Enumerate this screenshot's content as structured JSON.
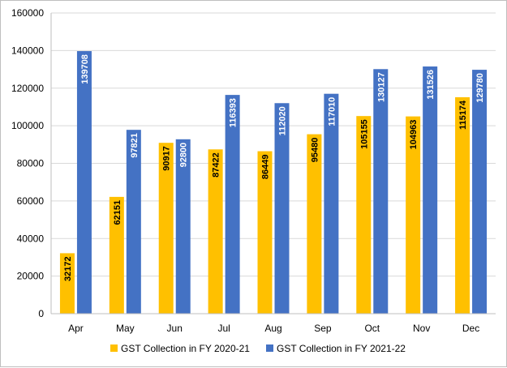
{
  "chart_data": {
    "type": "bar",
    "categories": [
      "Apr",
      "May",
      "Jun",
      "Jul",
      "Aug",
      "Sep",
      "Oct",
      "Nov",
      "Dec"
    ],
    "series": [
      {
        "name": "GST Collection in FY 2020-21",
        "color": "#FFC000",
        "label_color": "#000000",
        "values": [
          32172,
          62151,
          90917,
          87422,
          86449,
          95480,
          105155,
          104963,
          115174
        ]
      },
      {
        "name": "GST Collection in FY 2021-22",
        "color": "#4472C4",
        "label_color": "#ffffff",
        "values": [
          139708,
          97821,
          92800,
          116393,
          112020,
          117010,
          130127,
          131526,
          129780
        ]
      }
    ],
    "ylim": [
      0,
      160000
    ],
    "yticks": [
      "0",
      "20000",
      "40000",
      "60000",
      "80000",
      "100000",
      "120000",
      "140000",
      "160000"
    ],
    "title": "",
    "xlabel": "",
    "ylabel": "",
    "grid": true,
    "legend_position": "bottom"
  }
}
